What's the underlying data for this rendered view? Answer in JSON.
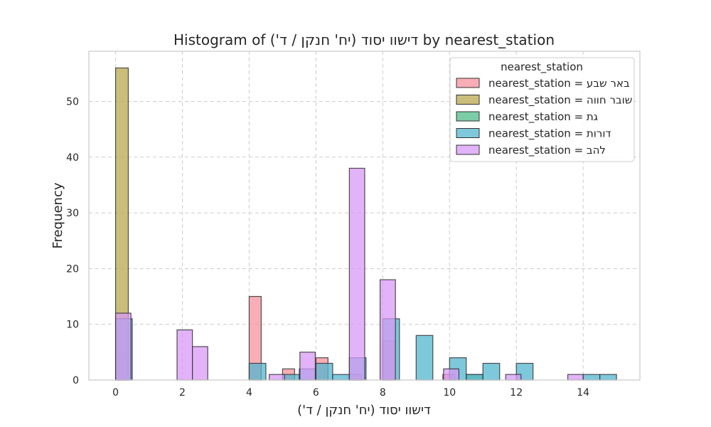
{
  "chart_data": {
    "type": "bar",
    "title": "Histogram of דישוו יסוד (יח' חנקן / ד') by nearest_station",
    "xlabel": "דישוו יסוד (יח' חנקן / ד')",
    "ylabel": "Frequency",
    "xlim": [
      -0.8,
      15.7
    ],
    "ylim": [
      0,
      59
    ],
    "xticks": [
      0,
      2,
      4,
      6,
      8,
      10,
      12,
      14
    ],
    "yticks": [
      0,
      10,
      20,
      30,
      40,
      50
    ],
    "grid": true,
    "legend": {
      "title": "nearest_station",
      "position": "top-right"
    },
    "series": [
      {
        "name": "nearest_station = באר שבע",
        "color": "#f7919c",
        "bins": [
          {
            "x0": 0.0,
            "x1": 0.36,
            "count": 5
          },
          {
            "x0": 4.0,
            "x1": 4.36,
            "count": 15
          },
          {
            "x0": 5.0,
            "x1": 5.36,
            "count": 2
          },
          {
            "x0": 6.0,
            "x1": 6.36,
            "count": 4
          },
          {
            "x0": 7.0,
            "x1": 7.36,
            "count": 1
          },
          {
            "x0": 8.0,
            "x1": 8.36,
            "count": 7
          },
          {
            "x0": 9.8,
            "x1": 10.16,
            "count": 1
          }
        ]
      },
      {
        "name": "nearest_station = שובר חווה",
        "color": "#b9a84f",
        "bins": [
          {
            "x0": 0.0,
            "x1": 0.38,
            "count": 56
          }
        ]
      },
      {
        "name": "nearest_station = גת",
        "color": "#4fbb8a",
        "bins": [
          {
            "x0": 10.5,
            "x1": 11.0,
            "count": 1
          }
        ]
      },
      {
        "name": "nearest_station = דורות",
        "color": "#53b5cf",
        "bins": [
          {
            "x0": 0.0,
            "x1": 0.5,
            "count": 11
          },
          {
            "x0": 4.0,
            "x1": 4.5,
            "count": 3
          },
          {
            "x0": 5.0,
            "x1": 5.5,
            "count": 1
          },
          {
            "x0": 5.5,
            "x1": 6.0,
            "count": 2
          },
          {
            "x0": 6.0,
            "x1": 6.5,
            "count": 3
          },
          {
            "x0": 6.5,
            "x1": 7.0,
            "count": 1
          },
          {
            "x0": 7.0,
            "x1": 7.5,
            "count": 4
          },
          {
            "x0": 8.0,
            "x1": 8.5,
            "count": 11
          },
          {
            "x0": 9.0,
            "x1": 9.5,
            "count": 8
          },
          {
            "x0": 10.0,
            "x1": 10.5,
            "count": 4
          },
          {
            "x0": 10.5,
            "x1": 11.0,
            "count": 1
          },
          {
            "x0": 11.0,
            "x1": 11.5,
            "count": 3
          },
          {
            "x0": 12.0,
            "x1": 12.5,
            "count": 3
          },
          {
            "x0": 14.0,
            "x1": 14.5,
            "count": 1
          },
          {
            "x0": 14.5,
            "x1": 15.0,
            "count": 1
          }
        ]
      },
      {
        "name": "nearest_station = להב",
        "color": "#d89af5",
        "bins": [
          {
            "x0": 0.0,
            "x1": 0.46,
            "count": 12
          },
          {
            "x0": 1.84,
            "x1": 2.3,
            "count": 9
          },
          {
            "x0": 2.3,
            "x1": 2.76,
            "count": 6
          },
          {
            "x0": 4.6,
            "x1": 5.06,
            "count": 1
          },
          {
            "x0": 5.52,
            "x1": 5.98,
            "count": 5
          },
          {
            "x0": 7.0,
            "x1": 7.46,
            "count": 38
          },
          {
            "x0": 7.92,
            "x1": 8.38,
            "count": 18
          },
          {
            "x0": 9.82,
            "x1": 10.28,
            "count": 2
          },
          {
            "x0": 11.68,
            "x1": 12.14,
            "count": 1
          },
          {
            "x0": 13.54,
            "x1": 14.0,
            "count": 1
          }
        ]
      }
    ]
  }
}
